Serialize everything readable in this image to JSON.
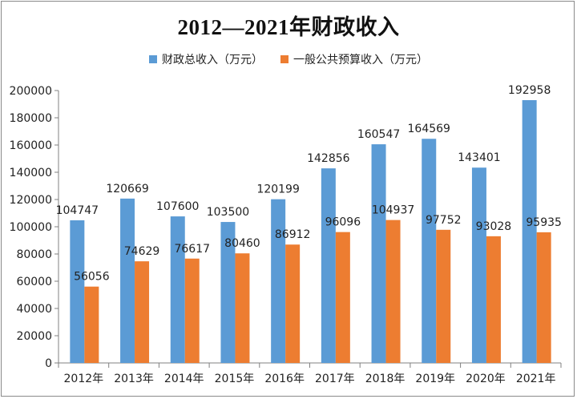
{
  "chart_data": {
    "type": "bar",
    "title": "2012—2021年财政收入",
    "categories": [
      "2012年",
      "2013年",
      "2014年",
      "2015年",
      "2016年",
      "2017年",
      "2018年",
      "2019年",
      "2020年",
      "2021年"
    ],
    "series": [
      {
        "name": "财政总收入（万元）",
        "color": "#5b9bd5",
        "values": [
          104747,
          120669,
          107600,
          103500,
          120199,
          142856,
          160547,
          164569,
          143401,
          192958
        ]
      },
      {
        "name": "一般公共预算收入（万元）",
        "color": "#ed7d31",
        "values": [
          56056,
          74629,
          76617,
          80460,
          86912,
          96096,
          104937,
          97752,
          93028,
          95935
        ]
      }
    ],
    "ylim": [
      0,
      200000
    ],
    "yticks": [
      0,
      20000,
      40000,
      60000,
      80000,
      100000,
      120000,
      140000,
      160000,
      180000,
      200000
    ],
    "grid": false,
    "legend_position": "top",
    "data_labels": true
  }
}
